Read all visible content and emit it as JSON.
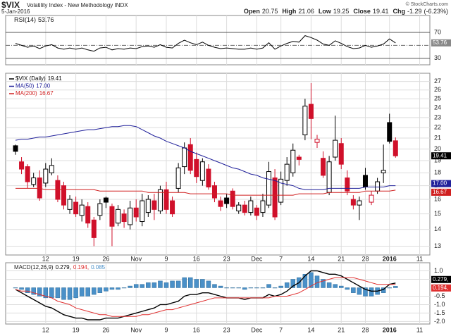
{
  "header": {
    "symbol": "$VIX",
    "description": "Volatility Index - New Methodology INDX",
    "date": "5-Jan-2016",
    "credit": "© StockCharts.com",
    "quote": [
      {
        "label": "Open",
        "value": 20.75
      },
      {
        "label": "High",
        "value": 21.06
      },
      {
        "label": "Low",
        "value": 19.25
      },
      {
        "label": "Close",
        "value": 19.41
      },
      {
        "label": "Chg",
        "value": -1.29
      }
    ],
    "change_pct": {
      "value": -6.23,
      "label": "(-6.23%)"
    }
  },
  "chart_data": [
    {
      "type": "line",
      "series": [
        {
          "name": "RSI(14)",
          "color": "#000000",
          "last_label": 53.76,
          "values": [
            53,
            50,
            47,
            49,
            45,
            49,
            51,
            46,
            44,
            46,
            44,
            46,
            43,
            41,
            46,
            47,
            43,
            45,
            44,
            46,
            45,
            48,
            49,
            47,
            51,
            47,
            46,
            53,
            58,
            54,
            51,
            55,
            50,
            47,
            45,
            46,
            45,
            44,
            44,
            46,
            44,
            46,
            54,
            44,
            49,
            53,
            56,
            55,
            65,
            62,
            58,
            52,
            50,
            57,
            53,
            48,
            45,
            46,
            50,
            47,
            49,
            52,
            60,
            53.76
          ]
        }
      ],
      "ylim": [
        20,
        96
      ],
      "yticks": [
        30,
        70
      ],
      "reference_line": 50,
      "grid": true
    },
    {
      "type": "candlestick",
      "log_scale": true,
      "grid": true,
      "ylim": [
        12.5,
        28
      ],
      "yticks": [
        13,
        14,
        15,
        16,
        17,
        18,
        19,
        20,
        21,
        22,
        23,
        24,
        25,
        26,
        27
      ],
      "categories": [
        null,
        null,
        null,
        null,
        null,
        "12",
        null,
        null,
        null,
        null,
        "19",
        null,
        null,
        null,
        null,
        "26",
        null,
        null,
        null,
        null,
        "Nov",
        null,
        null,
        null,
        null,
        "9",
        null,
        null,
        null,
        null,
        "16",
        null,
        null,
        null,
        null,
        "23",
        null,
        null,
        null,
        null,
        "Dec",
        null,
        null,
        null,
        "7",
        null,
        null,
        null,
        null,
        "14",
        null,
        null,
        null,
        null,
        "21",
        null,
        null,
        null,
        "28",
        null,
        null,
        null,
        "2016",
        null,
        null,
        null,
        null,
        "11",
        null
      ],
      "series": [
        {
          "name": "$VIX (Daily)",
          "last_label": "19.41",
          "color": "#000000",
          "down_color": "#d0102a",
          "open": [
            20.3,
            18.9,
            18.5,
            17.1,
            17.6,
            17.2,
            18.0,
            17.4,
            17.0,
            15.3,
            15.8,
            14.9,
            15.5,
            14.6,
            14.9,
            16.1,
            15.5,
            14.4,
            15.0,
            14.3,
            15.4,
            14.5,
            15.1,
            15.9,
            15.2,
            16.7,
            15.9,
            16.8,
            18.5,
            20.4,
            19.1,
            17.4,
            18.3,
            17.0,
            15.9,
            16.1,
            16.6,
            15.2,
            15.6,
            15.1,
            15.4,
            15.1,
            15.6,
            17.6,
            15.8,
            17.4,
            18.0,
            19.3,
            21.3,
            24.4,
            20.6,
            19.2,
            16.5,
            19.3,
            20.5,
            17.6,
            16.0,
            15.6,
            17.8,
            15.8,
            16.6,
            18.0,
            22.5,
            20.75,
            null,
            null,
            null,
            null,
            null
          ],
          "high": [
            20.4,
            19.3,
            18.7,
            18.0,
            18.2,
            18.8,
            19.2,
            17.8,
            17.3,
            16.3,
            16.2,
            16.0,
            15.8,
            14.8,
            16.0,
            16.2,
            15.7,
            15.6,
            15.3,
            15.9,
            16.0,
            16.4,
            16.3,
            16.4,
            17.0,
            17.3,
            16.2,
            18.8,
            20.6,
            21.0,
            19.7,
            19.2,
            18.7,
            17.3,
            16.2,
            16.4,
            16.8,
            15.8,
            15.9,
            16.2,
            15.6,
            16.4,
            18.9,
            18.3,
            18.1,
            19.3,
            20.5,
            19.5,
            25.0,
            26.8,
            21.3,
            19.8,
            19.4,
            23.2,
            21.0,
            18.2,
            16.3,
            16.2,
            18.4,
            16.6,
            17.6,
            20.4,
            23.4,
            21.06,
            null,
            null,
            null,
            null,
            null
          ],
          "low": [
            19.5,
            17.9,
            16.8,
            16.9,
            15.9,
            16.9,
            17.8,
            15.8,
            15.3,
            15.0,
            14.8,
            14.5,
            14.1,
            13.0,
            14.6,
            15.4,
            13.0,
            14.2,
            14.1,
            14.0,
            14.5,
            14.2,
            14.8,
            14.6,
            15.0,
            15.0,
            14.8,
            16.5,
            17.9,
            17.9,
            17.2,
            17.0,
            16.7,
            15.8,
            15.2,
            15.4,
            15.3,
            15.0,
            14.9,
            14.9,
            14.6,
            14.8,
            15.4,
            14.6,
            15.6,
            17.0,
            17.7,
            18.6,
            20.8,
            20.9,
            20.1,
            17.6,
            16.3,
            19.0,
            18.3,
            16.3,
            15.3,
            14.6,
            16.7,
            15.6,
            16.4,
            17.2,
            20.5,
            19.25,
            null,
            null,
            null,
            null,
            null
          ],
          "close": [
            19.8,
            18.3,
            17.3,
            17.6,
            16.1,
            18.3,
            18.6,
            16.0,
            15.6,
            16.0,
            15.0,
            15.6,
            14.4,
            13.5,
            15.7,
            15.8,
            14.2,
            15.3,
            14.5,
            15.4,
            14.8,
            15.9,
            16.0,
            15.3,
            16.7,
            15.3,
            15.0,
            18.4,
            20.1,
            18.2,
            17.7,
            18.9,
            16.9,
            16.1,
            15.5,
            15.7,
            15.5,
            15.6,
            15.1,
            15.9,
            14.9,
            15.9,
            18.1,
            14.8,
            17.5,
            18.7,
            19.9,
            19.1,
            24.2,
            22.9,
            20.9,
            17.8,
            18.9,
            20.8,
            18.7,
            16.6,
            15.6,
            15.9,
            16.9,
            16.3,
            17.3,
            18.2,
            20.7,
            19.41,
            null,
            null,
            null,
            null,
            null
          ]
        },
        {
          "name": "MA(50)",
          "color": "#20209a",
          "last_label": "17.00",
          "values": [
            20.8,
            20.9,
            20.9,
            21.0,
            21.1,
            21.1,
            21.2,
            21.3,
            21.4,
            21.5,
            21.6,
            21.7,
            21.8,
            21.8,
            21.9,
            22.0,
            22.1,
            22.1,
            22.2,
            22.2,
            22.1,
            21.8,
            21.5,
            21.2,
            21.0,
            20.7,
            20.5,
            20.3,
            20.1,
            19.8,
            19.6,
            19.4,
            19.2,
            19.0,
            18.8,
            18.6,
            18.4,
            18.3,
            18.1,
            17.9,
            17.8,
            17.6,
            17.5,
            17.4,
            17.2,
            17.1,
            17.0,
            16.8,
            16.7,
            16.7,
            16.7,
            16.7,
            16.8,
            16.8,
            16.8,
            16.8,
            16.8,
            16.8,
            16.9,
            16.9,
            16.9,
            16.9,
            17.0,
            17.0,
            null,
            null,
            null,
            null,
            null
          ]
        },
        {
          "name": "MA(200)",
          "color": "#d02020",
          "last_label": "16.67",
          "values": [
            16.8,
            16.8,
            16.8,
            16.8,
            16.8,
            16.7,
            16.7,
            16.7,
            16.7,
            16.7,
            16.7,
            16.7,
            16.7,
            16.7,
            16.6,
            16.6,
            16.6,
            16.6,
            16.6,
            16.6,
            16.6,
            16.6,
            16.5,
            16.5,
            16.5,
            16.5,
            16.5,
            16.5,
            16.5,
            16.4,
            16.4,
            16.4,
            16.4,
            16.4,
            16.4,
            16.4,
            16.3,
            16.3,
            16.3,
            16.3,
            16.3,
            16.3,
            16.3,
            16.3,
            16.3,
            16.3,
            16.3,
            16.4,
            16.4,
            16.4,
            16.4,
            16.4,
            16.5,
            16.5,
            16.5,
            16.5,
            16.5,
            16.5,
            16.6,
            16.6,
            16.6,
            16.6,
            16.6,
            16.67,
            null,
            null,
            null,
            null,
            null
          ]
        }
      ]
    },
    {
      "type": "macd",
      "title": "MACD(12,26,9)",
      "grid": true,
      "ylim": [
        -2.15,
        1.48
      ],
      "yticks": [
        {
          "value": -2,
          "label": "-2.0"
        },
        {
          "value": -1.5,
          "label": "-1.5"
        },
        {
          "value": -1,
          "label": "-1.0"
        },
        {
          "value": -0.5,
          "label": "-0.5"
        },
        {
          "value": 0.5,
          "label": "0.5"
        },
        {
          "value": 1,
          "label": "1.0"
        }
      ],
      "categories": [
        null,
        null,
        null,
        null,
        null,
        "12",
        null,
        null,
        null,
        null,
        "19",
        null,
        null,
        null,
        null,
        "26",
        null,
        null,
        null,
        null,
        "Nov",
        null,
        null,
        null,
        null,
        "9",
        null,
        null,
        null,
        null,
        "16",
        null,
        null,
        null,
        null,
        "23",
        null,
        null,
        null,
        null,
        "Dec",
        null,
        null,
        null,
        "7",
        null,
        null,
        null,
        null,
        "14",
        null,
        null,
        null,
        null,
        "21",
        null,
        null,
        null,
        "28",
        null,
        null,
        null,
        "2016",
        null,
        null,
        null,
        null,
        "11",
        null
      ],
      "series": [
        {
          "name": "MACD",
          "color": "#000000",
          "last_label": "0.279,",
          "values": [
            -0.1,
            -0.3,
            -0.5,
            -0.7,
            -0.9,
            -1.1,
            -1.2,
            -1.4,
            -1.6,
            -1.7,
            -1.8,
            -1.8,
            -1.9,
            -1.9,
            -1.9,
            -1.8,
            -1.8,
            -1.8,
            -1.7,
            -1.6,
            -1.5,
            -1.4,
            -1.3,
            -1.2,
            -1.0,
            -1.0,
            -0.9,
            -0.8,
            -0.5,
            -0.4,
            -0.4,
            -0.3,
            -0.3,
            -0.4,
            -0.5,
            -0.6,
            -0.6,
            -0.6,
            -0.7,
            -0.6,
            -0.6,
            -0.6,
            -0.4,
            -0.5,
            -0.4,
            -0.2,
            0.1,
            0.3,
            0.7,
            1.0,
            1.0,
            0.9,
            0.8,
            0.8,
            0.7,
            0.5,
            0.3,
            0.1,
            -0.1,
            -0.2,
            -0.2,
            -0.1,
            0.2,
            0.279,
            null,
            null,
            null,
            null,
            null
          ]
        },
        {
          "name": "Signal",
          "color": "#e03030",
          "last_label": "0.194,",
          "values": [
            -0.1,
            -0.2,
            -0.2,
            -0.3,
            -0.4,
            -0.5,
            -0.6,
            -0.8,
            -0.9,
            -1.0,
            -1.2,
            -1.3,
            -1.4,
            -1.5,
            -1.6,
            -1.6,
            -1.7,
            -1.7,
            -1.7,
            -1.7,
            -1.7,
            -1.6,
            -1.6,
            -1.5,
            -1.4,
            -1.3,
            -1.3,
            -1.2,
            -1.1,
            -1.0,
            -0.9,
            -0.8,
            -0.7,
            -0.6,
            -0.6,
            -0.6,
            -0.6,
            -0.6,
            -0.6,
            -0.6,
            -0.6,
            -0.6,
            -0.6,
            -0.5,
            -0.5,
            -0.5,
            -0.4,
            -0.3,
            -0.1,
            0.1,
            0.3,
            0.4,
            0.5,
            0.6,
            0.6,
            0.6,
            0.6,
            0.5,
            0.4,
            0.3,
            0.2,
            0.2,
            0.2,
            0.194,
            null,
            null,
            null,
            null,
            null
          ]
        },
        {
          "name": "Histogram",
          "color": "#4a90c8",
          "last_label": "0.085",
          "values": [
            0,
            -0.1,
            -0.3,
            -0.4,
            -0.5,
            -0.6,
            -0.6,
            -0.6,
            -0.7,
            -0.7,
            -0.6,
            -0.5,
            -0.5,
            -0.4,
            -0.3,
            -0.2,
            -0.1,
            -0.1,
            0,
            0.1,
            0.2,
            0.2,
            0.3,
            0.3,
            0.4,
            0.3,
            0.4,
            0.4,
            0.6,
            0.6,
            0.5,
            0.5,
            0.4,
            0.2,
            0.1,
            0,
            0,
            0,
            -0.1,
            0,
            0,
            0,
            0.2,
            0,
            0.1,
            0.3,
            0.5,
            0.6,
            0.8,
            0.9,
            0.7,
            0.5,
            0.3,
            0.2,
            0.1,
            -0.1,
            -0.3,
            -0.4,
            -0.5,
            -0.5,
            -0.4,
            -0.3,
            0,
            0.085,
            null,
            null,
            null,
            null,
            null
          ]
        }
      ]
    }
  ]
}
